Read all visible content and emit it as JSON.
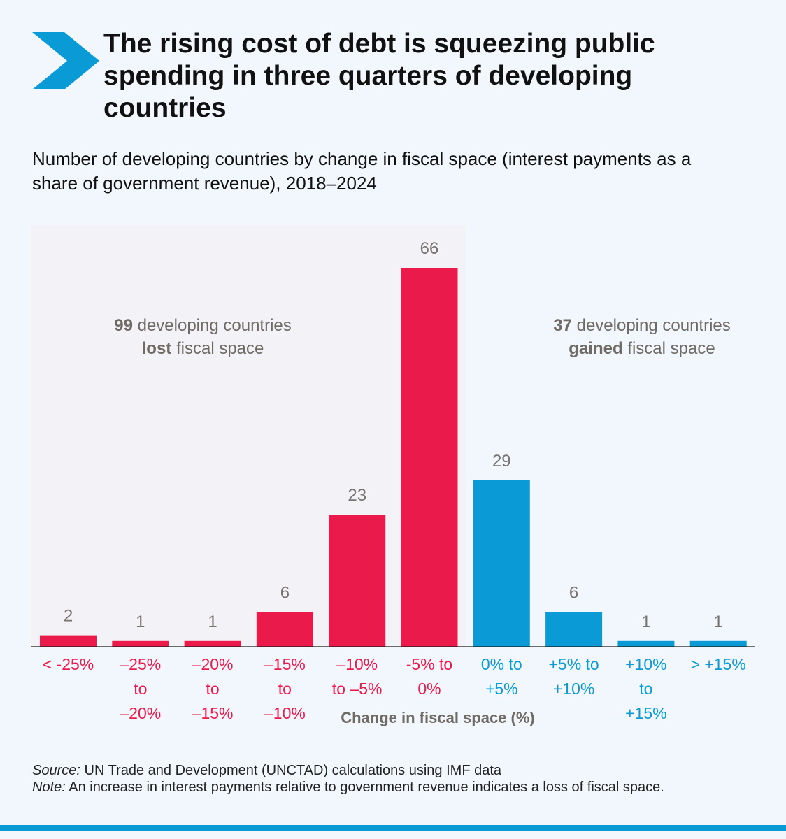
{
  "title": "The rising cost of debt is squeezing public spending in three quarters of developing countries",
  "subtitle": "Number of developing countries by change in fiscal space (interest payments as a share of government revenue), 2018–2024",
  "colors": {
    "loss": "#ea1a4b",
    "gain": "#0a9bd6",
    "loss_panel": "#f3f3f7",
    "background": "#f1f7fc",
    "chevron": "#0a9bd6",
    "annotation": "#6f6a64",
    "data_label": "#77736e"
  },
  "icon": "chevron-right-icon",
  "annotations": {
    "lost": {
      "count": "99",
      "line1_rest": " developing countries",
      "bold": "lost",
      "line2_rest": " fiscal space"
    },
    "gained": {
      "count": "37",
      "line1_rest": " developing countries",
      "bold": "gained",
      "line2_rest": " fiscal space"
    }
  },
  "chart_data": {
    "type": "bar",
    "title": "Number of developing countries by change in fiscal space (interest payments as a share of government revenue), 2018–2024",
    "xlabel": "Change in fiscal space (%)",
    "ylabel": "",
    "ylim": [
      0,
      66
    ],
    "grid": false,
    "categories": [
      [
        "< -25%"
      ],
      [
        "–25%",
        "to",
        "–20%"
      ],
      [
        "–20%",
        "to",
        "–15%"
      ],
      [
        "–15%",
        "to",
        "–10%"
      ],
      [
        "–10%",
        "to –5%"
      ],
      [
        "-5% to",
        "0%"
      ],
      [
        "0% to",
        "+5%"
      ],
      [
        "+5% to",
        "+10%"
      ],
      [
        "+10%",
        "to",
        "+15%"
      ],
      [
        "> +15%"
      ]
    ],
    "values": [
      2,
      1,
      1,
      6,
      23,
      66,
      29,
      6,
      1,
      1
    ],
    "groups": [
      "loss",
      "loss",
      "loss",
      "loss",
      "loss",
      "loss",
      "gain",
      "gain",
      "gain",
      "gain"
    ]
  },
  "source": {
    "label": "Source:",
    "text": " UN Trade and Development (UNCTAD) calculations using IMF data"
  },
  "note": {
    "label": "Note:",
    "text": " An increase in interest payments relative to government revenue indicates a loss of fiscal space."
  }
}
